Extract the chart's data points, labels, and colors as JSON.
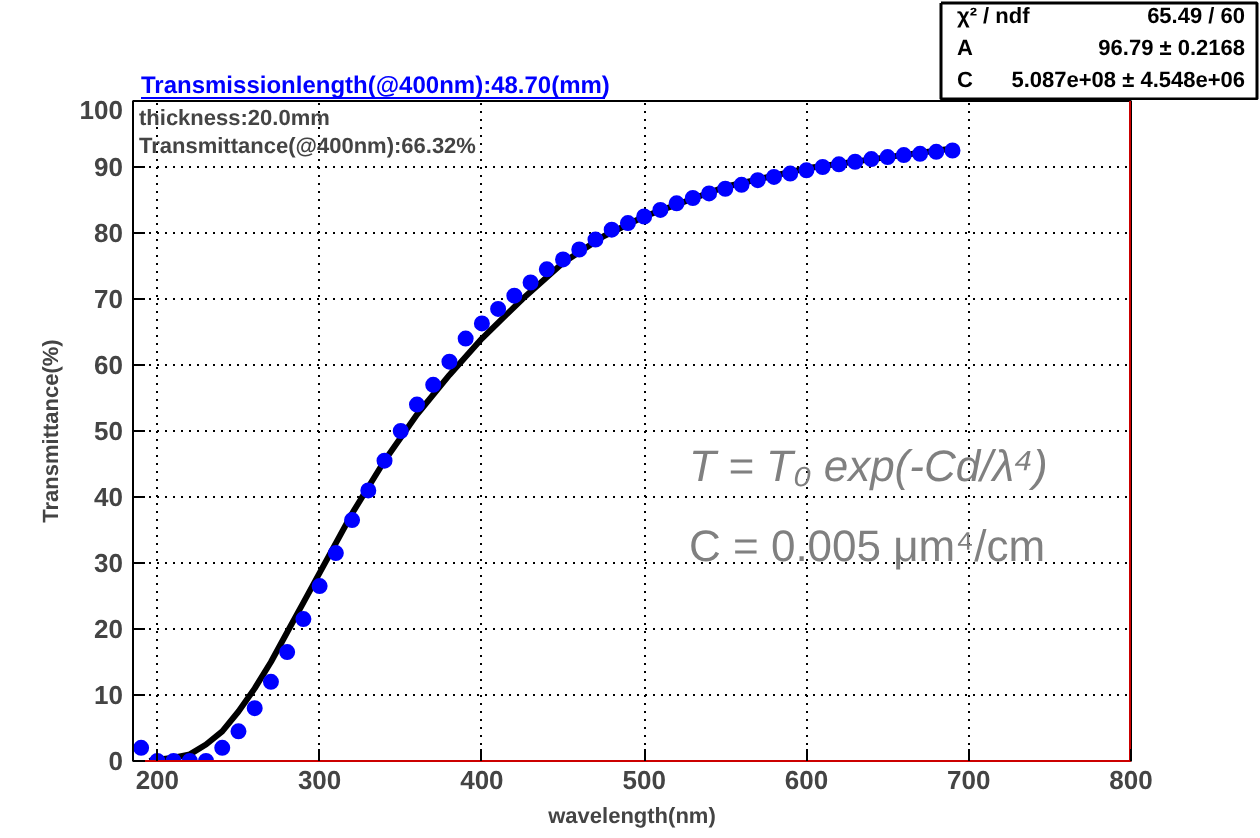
{
  "chart_data": {
    "type": "scatter",
    "xlabel": "wavelength(nm)",
    "ylabel": "Transmittance(%)",
    "xlim": [
      185,
      800
    ],
    "ylim": [
      0,
      100
    ],
    "xticks": [
      200,
      300,
      400,
      500,
      600,
      700,
      800
    ],
    "yticks": [
      0,
      10,
      20,
      30,
      40,
      50,
      60,
      70,
      80,
      90,
      100
    ],
    "grid": true,
    "marker": "circle",
    "series": [
      {
        "color": "#0000ff",
        "x": [
          190,
          200,
          210,
          220,
          230,
          240,
          250,
          260,
          270,
          280,
          290,
          300,
          310,
          320,
          330,
          340,
          350,
          360,
          370,
          380,
          390,
          400,
          410,
          420,
          430,
          440,
          450,
          460,
          470,
          480,
          490,
          500,
          510,
          520,
          530,
          540,
          550,
          560,
          570,
          580,
          590,
          600,
          610,
          620,
          630,
          640,
          650,
          660,
          670,
          680,
          690
        ],
        "values": [
          2,
          0,
          0,
          0,
          0,
          2,
          4.5,
          8,
          12,
          16.5,
          21.5,
          26.5,
          31.5,
          36.5,
          41,
          45.5,
          50,
          54,
          57,
          60.5,
          64,
          66.3,
          68.5,
          70.5,
          72.5,
          74.5,
          76,
          77.5,
          79,
          80.5,
          81.5,
          82.5,
          83.5,
          84.5,
          85.3,
          86,
          86.7,
          87.3,
          88,
          88.5,
          89,
          89.5,
          90,
          90.4,
          90.8,
          91.2,
          91.5,
          91.8,
          92,
          92.3,
          92.5
        ]
      },
      {
        "type": "line",
        "marker": "none",
        "color": "#000000",
        "x": [
          195,
          200,
          210,
          220,
          230,
          240,
          250,
          260,
          270,
          280,
          290,
          300,
          320,
          340,
          360,
          380,
          400,
          425,
          450,
          475,
          500,
          550,
          600,
          650,
          690
        ],
        "values": [
          0,
          0.2,
          0.5,
          1,
          2.5,
          4.5,
          7.5,
          11,
          15,
          19.5,
          24,
          28.5,
          37.5,
          45.5,
          52.5,
          58.5,
          64,
          70,
          75.5,
          79.5,
          82.5,
          87,
          89.8,
          91.5,
          92.8
        ]
      }
    ],
    "annotations": [
      "Transmissionlength(@400nm):48.70(mm)",
      "thickness:20.0mm",
      "Transmittance(@400nm):66.32%",
      "χ² / ndf",
      "65.49 / 60",
      "A",
      "96.79 ± 0.2168",
      "C",
      "5.087e+08 ± 4.548e+06",
      "T = T₀ exp(-Cd/λ⁴)",
      "C = 0.005 μm⁴/cm"
    ]
  }
}
